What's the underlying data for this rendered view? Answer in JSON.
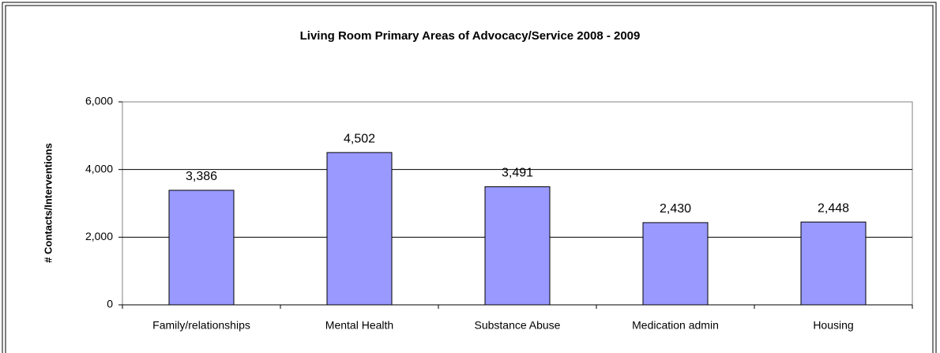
{
  "chart_data": {
    "type": "bar",
    "title": "Living Room Primary Areas of Advocacy/Service 2008 - 2009",
    "y_label": "# Contacts/Interventions",
    "categories": [
      "Family/relationships",
      "Mental Health",
      "Substance Abuse",
      "Medication admin",
      "Housing"
    ],
    "values": [
      3386,
      4502,
      3491,
      2430,
      2448
    ],
    "value_labels": [
      "3,386",
      "4,502",
      "3,491",
      "2,430",
      "2,448"
    ],
    "color": "#9999ff",
    "ylim": [
      0,
      6000
    ],
    "yticks": [
      0,
      {
        "value": 2000,
        "label": "2,000"
      },
      {
        "value": 4000,
        "label": "4,000"
      },
      {
        "value": 6000,
        "label": "6,000"
      }
    ],
    "grid": true
  }
}
